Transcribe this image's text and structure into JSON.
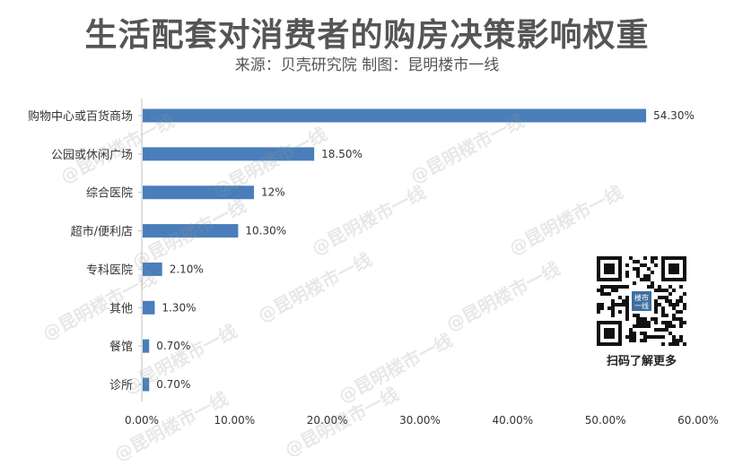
{
  "chart_data": {
    "type": "bar",
    "orientation": "horizontal",
    "title": "生活配套对消费者的购房决策影响权重",
    "subtitle": "来源：贝壳研究院 制图：昆明楼市一线",
    "categories": [
      "购物中心或百货商场",
      "公园或休闲广场",
      "综合医院",
      "超市/便利店",
      "专科医院",
      "其他",
      "餐馆",
      "诊所"
    ],
    "values": [
      54.3,
      18.5,
      12,
      10.3,
      2.1,
      1.3,
      0.7,
      0.7
    ],
    "data_labels": [
      "54.30%",
      "18.50%",
      "12%",
      "10.30%",
      "2.10%",
      "1.30%",
      "0.70%",
      "0.70%"
    ],
    "xlim": [
      0,
      60
    ],
    "x_ticks": [
      "0.00%",
      "10.00%",
      "20.00%",
      "30.00%",
      "40.00%",
      "50.00%",
      "60.00%"
    ],
    "bar_color": "#4a7ebb",
    "grid": false,
    "legend": "none"
  },
  "watermark": "@昆明楼市一线",
  "qr": {
    "label": "扫码了解更多",
    "logo_text": "楼市一线"
  }
}
